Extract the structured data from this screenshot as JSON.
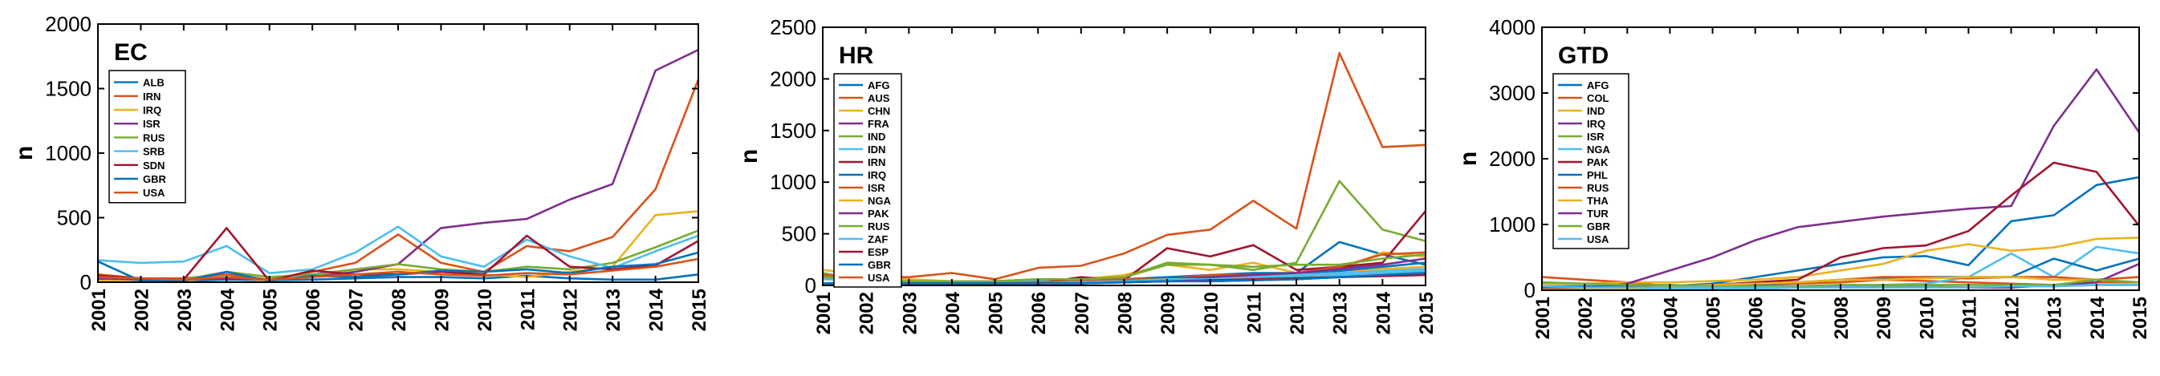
{
  "chart_data": [
    {
      "type": "line",
      "title": "EC",
      "xlabel": "",
      "ylabel": "n",
      "ylim": [
        0,
        2000
      ],
      "yticks": [
        0,
        500,
        1000,
        1500,
        2000
      ],
      "x": [
        2001,
        2002,
        2003,
        2004,
        2005,
        2006,
        2007,
        2008,
        2009,
        2010,
        2011,
        2012,
        2013,
        2014,
        2015
      ],
      "legend_position": "top-left",
      "series": [
        {
          "name": "ALB",
          "color": "#0072BD",
          "values": [
            20,
            15,
            10,
            20,
            15,
            20,
            30,
            40,
            40,
            30,
            50,
            30,
            20,
            20,
            60
          ]
        },
        {
          "name": "IRN",
          "color": "#D95319",
          "values": [
            60,
            30,
            30,
            60,
            20,
            80,
            150,
            370,
            150,
            80,
            280,
            240,
            350,
            720,
            1570
          ]
        },
        {
          "name": "IRQ",
          "color": "#EDB120",
          "values": [
            10,
            20,
            10,
            40,
            10,
            50,
            100,
            100,
            80,
            60,
            40,
            80,
            120,
            520,
            550
          ]
        },
        {
          "name": "ISR",
          "color": "#7E2F8E",
          "values": [
            30,
            20,
            20,
            30,
            20,
            40,
            80,
            140,
            420,
            460,
            490,
            640,
            760,
            1640,
            1800
          ]
        },
        {
          "name": "RUS",
          "color": "#77AC30",
          "values": [
            40,
            30,
            20,
            80,
            40,
            60,
            100,
            140,
            100,
            80,
            120,
            100,
            150,
            270,
            400
          ]
        },
        {
          "name": "SRB",
          "color": "#4DBEEE",
          "values": [
            170,
            150,
            160,
            280,
            70,
            100,
            230,
            430,
            200,
            120,
            330,
            200,
            110,
            240,
            360
          ]
        },
        {
          "name": "SDN",
          "color": "#A2142F",
          "values": [
            50,
            30,
            20,
            420,
            10,
            90,
            60,
            60,
            80,
            60,
            360,
            120,
            100,
            130,
            320
          ]
        },
        {
          "name": "GBR",
          "color": "#0072BD",
          "values": [
            160,
            10,
            10,
            80,
            10,
            50,
            40,
            60,
            90,
            80,
            100,
            70,
            120,
            140,
            230
          ]
        },
        {
          "name": "USA",
          "color": "#D95319",
          "values": [
            40,
            30,
            20,
            40,
            20,
            40,
            60,
            80,
            60,
            50,
            70,
            60,
            90,
            120,
            180
          ]
        }
      ]
    },
    {
      "type": "line",
      "title": "HR",
      "xlabel": "",
      "ylabel": "n",
      "ylim": [
        0,
        2500
      ],
      "yticks": [
        0,
        500,
        1000,
        1500,
        2000,
        2500
      ],
      "x": [
        2001,
        2002,
        2003,
        2004,
        2005,
        2006,
        2007,
        2008,
        2009,
        2010,
        2011,
        2012,
        2013,
        2014,
        2015
      ],
      "legend_position": "top-left",
      "series": [
        {
          "name": "AFG",
          "color": "#0072BD",
          "values": [
            10,
            10,
            10,
            10,
            10,
            20,
            30,
            40,
            60,
            80,
            100,
            120,
            420,
            300,
            200
          ]
        },
        {
          "name": "AUS",
          "color": "#D95319",
          "values": [
            20,
            20,
            20,
            20,
            20,
            20,
            30,
            30,
            40,
            50,
            60,
            70,
            80,
            100,
            120
          ]
        },
        {
          "name": "CHN",
          "color": "#EDB120",
          "values": [
            150,
            100,
            60,
            40,
            40,
            60,
            60,
            100,
            200,
            150,
            220,
            120,
            150,
            320,
            280
          ]
        },
        {
          "name": "FRA",
          "color": "#7E2F8E",
          "values": [
            20,
            20,
            20,
            20,
            20,
            20,
            30,
            30,
            40,
            40,
            50,
            60,
            80,
            100,
            140
          ]
        },
        {
          "name": "IND",
          "color": "#77AC30",
          "values": [
            80,
            60,
            40,
            40,
            40,
            60,
            60,
            80,
            200,
            200,
            150,
            220,
            1010,
            540,
            430
          ]
        },
        {
          "name": "IDN",
          "color": "#4DBEEE",
          "values": [
            60,
            50,
            40,
            30,
            30,
            40,
            40,
            50,
            60,
            60,
            70,
            80,
            100,
            120,
            140
          ]
        },
        {
          "name": "IRN",
          "color": "#A2142F",
          "values": [
            20,
            20,
            20,
            20,
            20,
            20,
            80,
            50,
            360,
            280,
            390,
            150,
            180,
            220,
            720
          ]
        },
        {
          "name": "IRQ",
          "color": "#0072BD",
          "values": [
            20,
            20,
            40,
            30,
            20,
            20,
            30,
            60,
            80,
            100,
            120,
            120,
            140,
            180,
            220
          ]
        },
        {
          "name": "ISR",
          "color": "#D95319",
          "values": [
            20,
            20,
            20,
            20,
            20,
            30,
            40,
            60,
            60,
            100,
            100,
            120,
            180,
            300,
            320
          ]
        },
        {
          "name": "NGA",
          "color": "#EDB120",
          "values": [
            20,
            20,
            20,
            20,
            20,
            20,
            30,
            40,
            60,
            60,
            80,
            100,
            120,
            160,
            180
          ]
        },
        {
          "name": "PAK",
          "color": "#7E2F8E",
          "values": [
            20,
            20,
            20,
            20,
            20,
            20,
            30,
            40,
            60,
            80,
            100,
            120,
            160,
            200,
            260
          ]
        },
        {
          "name": "RUS",
          "color": "#77AC30",
          "values": [
            120,
            40,
            40,
            40,
            40,
            60,
            60,
            80,
            220,
            200,
            180,
            200,
            200,
            260,
            300
          ]
        },
        {
          "name": "ZAF",
          "color": "#4DBEEE",
          "values": [
            20,
            20,
            20,
            20,
            20,
            20,
            30,
            40,
            60,
            60,
            80,
            100,
            120,
            140,
            160
          ]
        },
        {
          "name": "ESP",
          "color": "#A2142F",
          "values": [
            20,
            20,
            20,
            20,
            20,
            20,
            20,
            30,
            40,
            50,
            60,
            70,
            80,
            90,
            100
          ]
        },
        {
          "name": "GBR",
          "color": "#0072BD",
          "values": [
            20,
            20,
            20,
            20,
            20,
            20,
            20,
            30,
            40,
            40,
            50,
            60,
            80,
            100,
            120
          ]
        },
        {
          "name": "USA",
          "color": "#D95319",
          "values": [
            100,
            80,
            80,
            120,
            60,
            170,
            190,
            310,
            490,
            540,
            820,
            550,
            2250,
            1340,
            1360
          ]
        }
      ]
    },
    {
      "type": "line",
      "title": "GTD",
      "xlabel": "",
      "ylabel": "n",
      "ylim": [
        0,
        4000
      ],
      "yticks": [
        0,
        1000,
        2000,
        3000,
        4000
      ],
      "x": [
        2001,
        2002,
        2003,
        2004,
        2005,
        2006,
        2007,
        2008,
        2009,
        2010,
        2011,
        2012,
        2013,
        2014,
        2015
      ],
      "legend_position": "top-left",
      "series": [
        {
          "name": "AFG",
          "color": "#0072BD",
          "values": [
            20,
            30,
            40,
            60,
            100,
            200,
            300,
            400,
            500,
            520,
            380,
            1050,
            1140,
            1600,
            1720
          ]
        },
        {
          "name": "COL",
          "color": "#D95319",
          "values": [
            200,
            160,
            120,
            60,
            60,
            80,
            100,
            120,
            160,
            140,
            120,
            100,
            80,
            120,
            120
          ]
        },
        {
          "name": "IND",
          "color": "#EDB120",
          "values": [
            100,
            100,
            120,
            120,
            140,
            160,
            200,
            300,
            400,
            600,
            700,
            600,
            650,
            780,
            800
          ]
        },
        {
          "name": "IRQ",
          "color": "#7E2F8E",
          "values": [
            10,
            20,
            100,
            300,
            500,
            760,
            960,
            1040,
            1120,
            1180,
            1240,
            1280,
            2500,
            3360,
            2400
          ]
        },
        {
          "name": "ISR",
          "color": "#77AC30",
          "values": [
            60,
            60,
            40,
            40,
            40,
            40,
            40,
            40,
            60,
            60,
            40,
            60,
            60,
            80,
            80
          ]
        },
        {
          "name": "NGA",
          "color": "#4DBEEE",
          "values": [
            10,
            10,
            10,
            20,
            20,
            20,
            40,
            60,
            80,
            100,
            200,
            560,
            200,
            660,
            560
          ]
        },
        {
          "name": "PAK",
          "color": "#A2142F",
          "values": [
            40,
            40,
            40,
            60,
            80,
            120,
            160,
            500,
            640,
            680,
            900,
            1440,
            1940,
            1800,
            980
          ]
        },
        {
          "name": "PHL",
          "color": "#0072BD",
          "values": [
            60,
            60,
            60,
            60,
            80,
            80,
            120,
            160,
            180,
            200,
            200,
            200,
            480,
            300,
            480
          ]
        },
        {
          "name": "RUS",
          "color": "#D95319",
          "values": [
            40,
            40,
            40,
            60,
            80,
            100,
            120,
            160,
            200,
            200,
            180,
            200,
            200,
            160,
            200
          ]
        },
        {
          "name": "THA",
          "color": "#EDB120",
          "values": [
            20,
            20,
            20,
            60,
            80,
            100,
            120,
            160,
            160,
            180,
            200,
            200,
            160,
            160,
            120
          ]
        },
        {
          "name": "TUR",
          "color": "#7E2F8E",
          "values": [
            40,
            40,
            40,
            40,
            40,
            40,
            40,
            40,
            40,
            40,
            40,
            40,
            80,
            120,
            400
          ]
        },
        {
          "name": "GBR",
          "color": "#77AC30",
          "values": [
            120,
            100,
            80,
            80,
            60,
            60,
            60,
            80,
            80,
            80,
            80,
            80,
            80,
            160,
            120
          ]
        },
        {
          "name": "USA",
          "color": "#4DBEEE",
          "values": [
            60,
            40,
            40,
            40,
            40,
            40,
            40,
            40,
            40,
            40,
            40,
            60,
            60,
            80,
            80
          ]
        }
      ]
    }
  ]
}
